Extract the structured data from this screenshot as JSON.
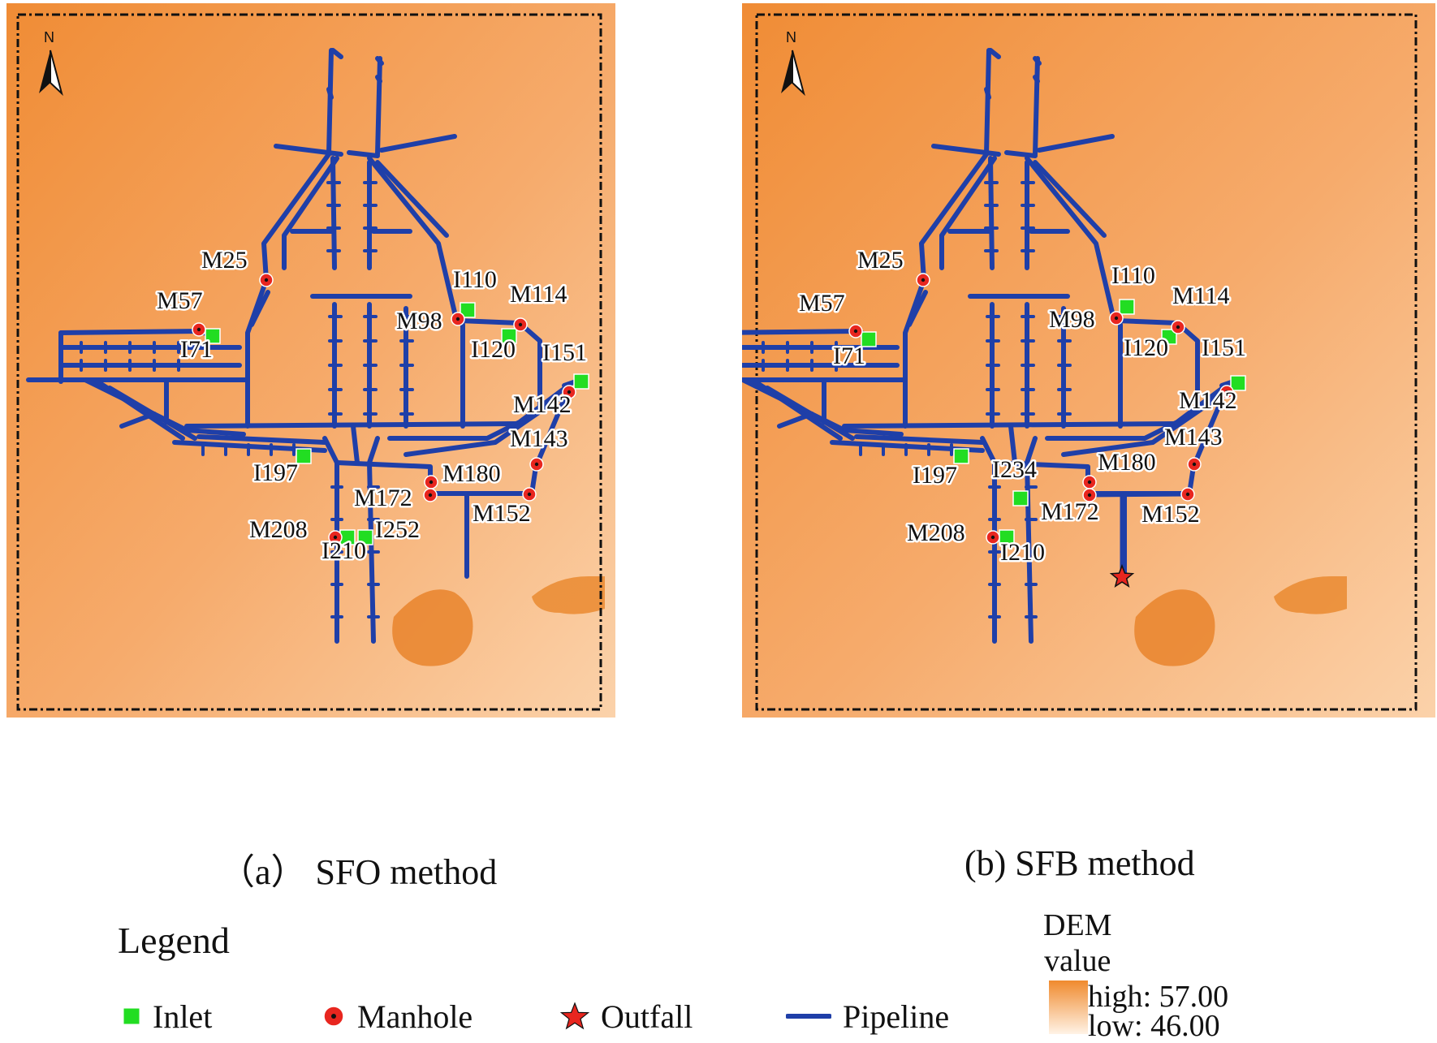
{
  "panels": [
    {
      "id": "a",
      "caption": "（a） SFO method",
      "north_label": "N",
      "labels": [
        "M25",
        "M57",
        "I71",
        "I110",
        "M98",
        "M114",
        "I120",
        "I151",
        "M142",
        "M143",
        "M180",
        "M172",
        "M152",
        "I197",
        "M208",
        "I210",
        "I252"
      ]
    },
    {
      "id": "b",
      "caption": "(b) SFB method",
      "north_label": "N",
      "labels": [
        "M25",
        "M57",
        "I71",
        "I110",
        "M98",
        "M114",
        "I120",
        "I151",
        "M142",
        "M143",
        "M180",
        "M172",
        "M152",
        "I197",
        "I234",
        "M208",
        "I210"
      ]
    }
  ],
  "legend": {
    "title": "Legend",
    "items": [
      {
        "label": "Inlet",
        "icon": "green-square"
      },
      {
        "label": "Manhole",
        "icon": "red-dot"
      },
      {
        "label": "Outfall",
        "icon": "red-star"
      },
      {
        "label": "Pipeline",
        "icon": "blue-line"
      }
    ]
  },
  "dem": {
    "title_line1": "DEM",
    "title_line2": "value",
    "high_label": "high",
    "high_value": "57.00",
    "low_label": "low",
    "low_value": "46.00"
  },
  "colors": {
    "pipeline": "#1f3fa8",
    "inlet": "#22dd22",
    "manhole": "#e8261f",
    "dem_high": "#f08a2e",
    "dem_low": "#fff3e6"
  }
}
